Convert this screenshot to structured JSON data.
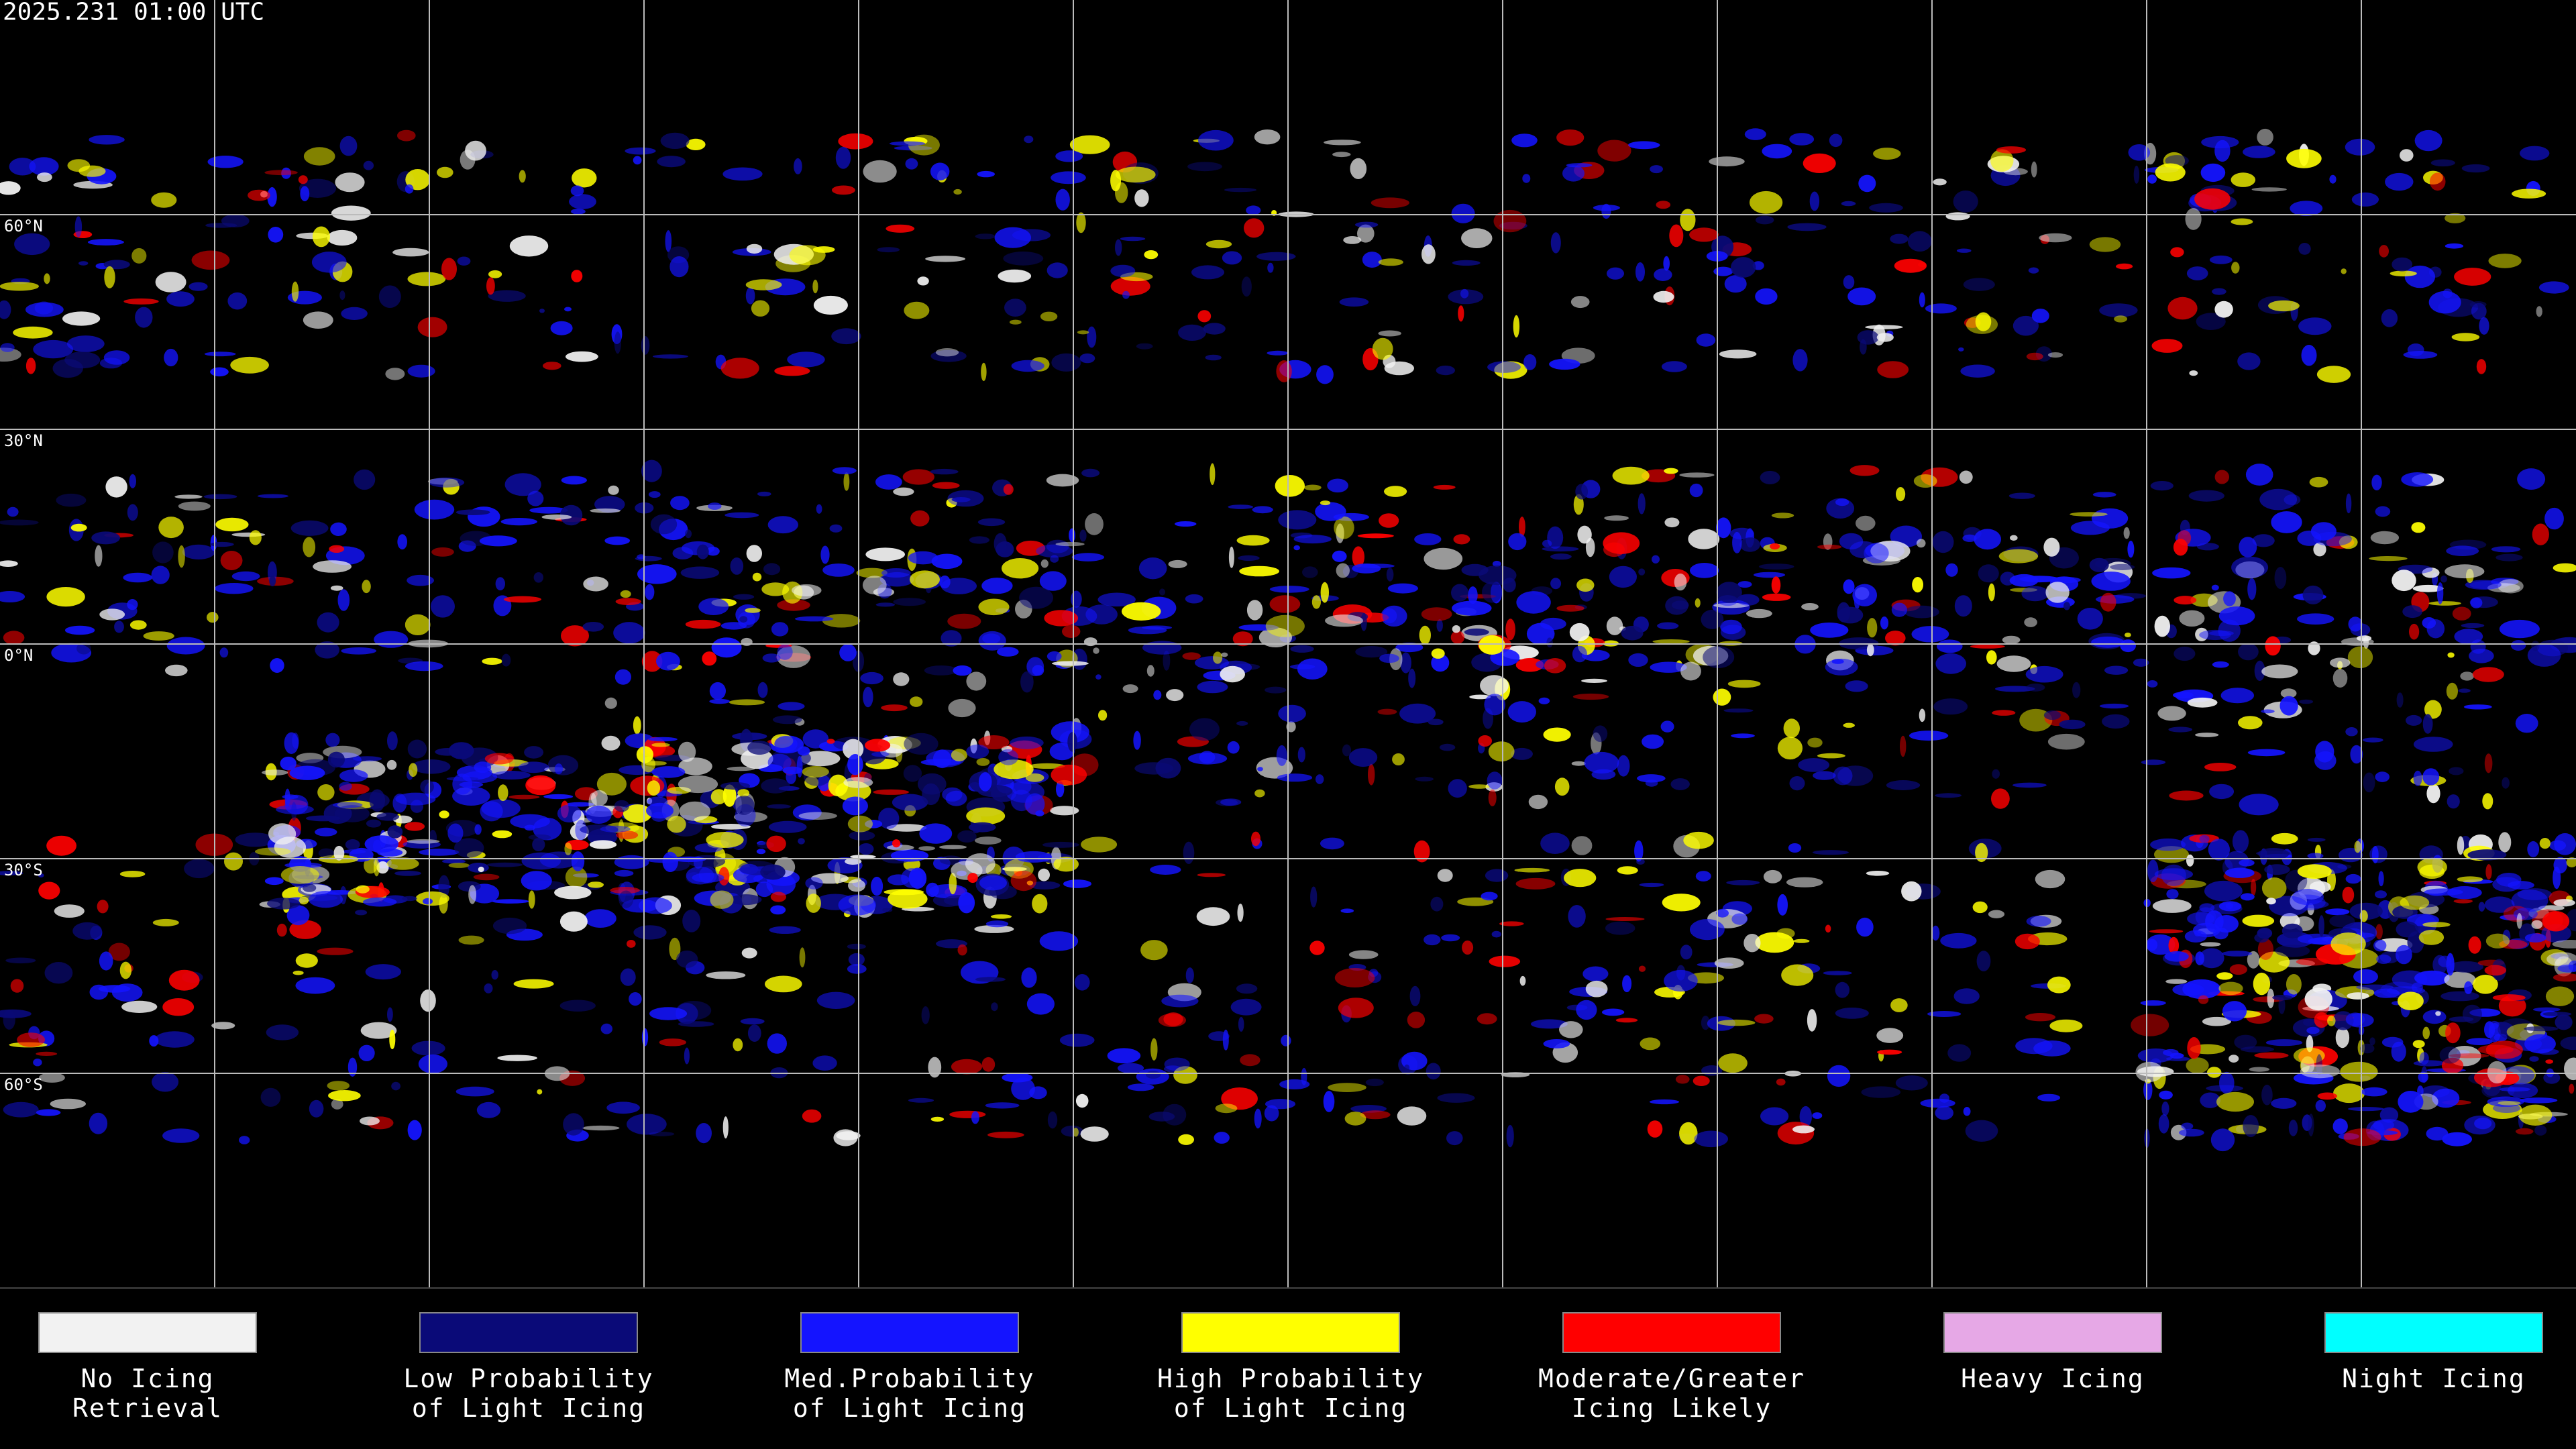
{
  "map": {
    "timestamp": "2025.231 01:00 UTC",
    "lat_labels": [
      "60°N",
      "30°N",
      "0°N",
      "30°S",
      "60°S"
    ]
  },
  "legend": [
    {
      "lines": [
        "No Icing",
        "Retrieval"
      ],
      "color": "#f2f2f2"
    },
    {
      "lines": [
        "Low Probability",
        "of Light Icing"
      ],
      "color": "#0a0a78"
    },
    {
      "lines": [
        "Med.Probability",
        "of Light Icing"
      ],
      "color": "#1414ff"
    },
    {
      "lines": [
        "High Probability",
        "of Light Icing"
      ],
      "color": "#ffff00"
    },
    {
      "lines": [
        "Moderate/Greater",
        "Icing Likely"
      ],
      "color": "#ff0000"
    },
    {
      "lines": [
        "Heavy Icing"
      ],
      "color": "#e6a8e6"
    },
    {
      "lines": [
        "Night Icing"
      ],
      "color": "#00ffff"
    }
  ]
}
